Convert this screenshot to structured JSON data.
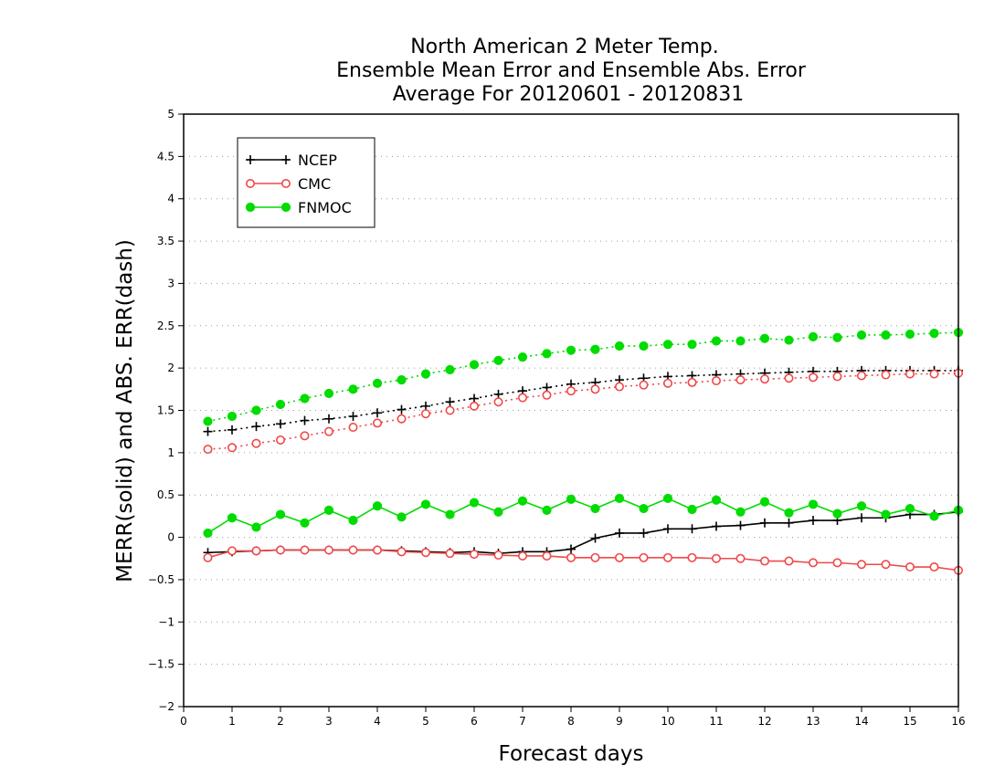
{
  "chart_data": {
    "type": "line",
    "title_lines": [
      "North American 2 Meter Temp.",
      "Ensemble Mean Error and Ensemble Abs. Error",
      "Average For 20120601 - 20120831"
    ],
    "xlabel": "Forecast days",
    "ylabel": "MERR(solid) and ABS. ERR(dash)",
    "xlim": [
      0,
      16
    ],
    "ylim": [
      -2,
      5
    ],
    "x_ticks": [
      "0",
      "1",
      "2",
      "3",
      "4",
      "5",
      "6",
      "7",
      "8",
      "9",
      "10",
      "11",
      "12",
      "13",
      "14",
      "15",
      "16"
    ],
    "y_ticks": [
      "-2",
      "-1.5",
      "-1",
      "-0.5",
      "0",
      "0.5",
      "1",
      "1.5",
      "2",
      "2.5",
      "3",
      "3.5",
      "4",
      "4.5",
      "5"
    ],
    "grid": "horizontal dotted",
    "legend_position": "top-left",
    "x": [
      0.5,
      1.0,
      1.5,
      2.0,
      2.5,
      3.0,
      3.5,
      4.0,
      4.5,
      5.0,
      5.5,
      6.0,
      6.5,
      7.0,
      7.5,
      8.0,
      8.5,
      9.0,
      9.5,
      10.0,
      10.5,
      11.0,
      11.5,
      12.0,
      12.5,
      13.0,
      13.5,
      14.0,
      14.5,
      15.0,
      15.5,
      16.0
    ],
    "series": [
      {
        "name": "NCEP",
        "color": "#000000",
        "marker": "plus",
        "merr": [
          -0.18,
          -0.17,
          -0.16,
          -0.15,
          -0.15,
          -0.15,
          -0.15,
          -0.15,
          -0.16,
          -0.17,
          -0.18,
          -0.17,
          -0.19,
          -0.17,
          -0.17,
          -0.14,
          -0.01,
          0.05,
          0.05,
          0.1,
          0.1,
          0.13,
          0.14,
          0.17,
          0.17,
          0.2,
          0.2,
          0.23,
          0.23,
          0.27,
          0.27,
          0.3
        ],
        "abs_err": [
          1.25,
          1.27,
          1.31,
          1.34,
          1.38,
          1.4,
          1.43,
          1.47,
          1.51,
          1.55,
          1.6,
          1.64,
          1.69,
          1.73,
          1.77,
          1.81,
          1.83,
          1.86,
          1.88,
          1.9,
          1.91,
          1.92,
          1.93,
          1.94,
          1.95,
          1.96,
          1.96,
          1.97,
          1.97,
          1.97,
          1.97,
          1.97
        ]
      },
      {
        "name": "CMC",
        "color": "#f04848",
        "marker": "open-circle",
        "merr": [
          -0.24,
          -0.16,
          -0.16,
          -0.15,
          -0.15,
          -0.15,
          -0.15,
          -0.15,
          -0.17,
          -0.18,
          -0.19,
          -0.2,
          -0.21,
          -0.22,
          -0.22,
          -0.24,
          -0.24,
          -0.24,
          -0.24,
          -0.24,
          -0.24,
          -0.25,
          -0.25,
          -0.28,
          -0.28,
          -0.3,
          -0.3,
          -0.32,
          -0.32,
          -0.35,
          -0.35,
          -0.39
        ],
        "abs_err": [
          1.04,
          1.06,
          1.11,
          1.15,
          1.2,
          1.25,
          1.3,
          1.35,
          1.4,
          1.46,
          1.5,
          1.55,
          1.6,
          1.65,
          1.68,
          1.73,
          1.75,
          1.78,
          1.8,
          1.82,
          1.83,
          1.85,
          1.86,
          1.87,
          1.88,
          1.89,
          1.9,
          1.91,
          1.92,
          1.93,
          1.93,
          1.94
        ]
      },
      {
        "name": "FNMOC",
        "color": "#00dc00",
        "marker": "filled-circle",
        "merr": [
          0.05,
          0.23,
          0.12,
          0.27,
          0.17,
          0.32,
          0.2,
          0.37,
          0.24,
          0.39,
          0.27,
          0.41,
          0.3,
          0.43,
          0.32,
          0.45,
          0.34,
          0.46,
          0.34,
          0.46,
          0.33,
          0.44,
          0.3,
          0.42,
          0.29,
          0.39,
          0.28,
          0.37,
          0.27,
          0.34,
          0.25,
          0.32
        ],
        "abs_err": [
          1.37,
          1.43,
          1.5,
          1.57,
          1.64,
          1.7,
          1.75,
          1.82,
          1.86,
          1.93,
          1.98,
          2.04,
          2.09,
          2.13,
          2.17,
          2.21,
          2.22,
          2.26,
          2.26,
          2.28,
          2.28,
          2.32,
          2.32,
          2.35,
          2.33,
          2.37,
          2.36,
          2.39,
          2.39,
          2.4,
          2.41,
          2.42
        ]
      }
    ]
  }
}
